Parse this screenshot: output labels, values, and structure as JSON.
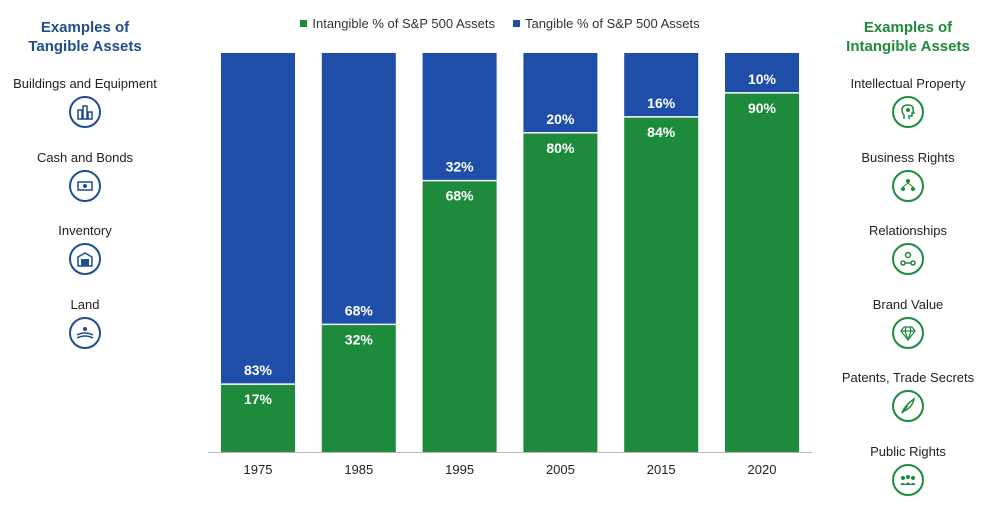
{
  "left_panel": {
    "title_line1": "Examples of",
    "title_line2": "Tangible Assets",
    "items": [
      {
        "label": "Buildings and Equipment",
        "icon": "building-icon"
      },
      {
        "label": "Cash and Bonds",
        "icon": "cash-icon"
      },
      {
        "label": "Inventory",
        "icon": "warehouse-icon"
      },
      {
        "label": "Land",
        "icon": "landscape-icon"
      }
    ]
  },
  "right_panel": {
    "title_line1": "Examples of",
    "title_line2": "Intangible Assets",
    "items": [
      {
        "label": "Intellectual Property",
        "icon": "head-idea-icon"
      },
      {
        "label": "Business Rights",
        "icon": "network-people-icon"
      },
      {
        "label": "Relationships",
        "icon": "relationships-icon"
      },
      {
        "label": "Brand Value",
        "icon": "diamond-icon"
      },
      {
        "label": "Patents, Trade Secrets",
        "icon": "quill-icon"
      },
      {
        "label": "Public Rights",
        "icon": "group-icon"
      }
    ]
  },
  "colors": {
    "intangible": "#1e8a3c",
    "tangible": "#1f4ea8",
    "left_accent": "#1f4e8c",
    "right_accent": "#1e8a3c"
  },
  "chart_data": {
    "type": "bar",
    "stacked": true,
    "categories": [
      "1975",
      "1985",
      "1995",
      "2005",
      "2015",
      "2020"
    ],
    "series": [
      {
        "name": "Intangible % of S&P 500 Assets",
        "values": [
          17,
          32,
          68,
          80,
          84,
          90
        ],
        "labels": [
          "17%",
          "32%",
          "68%",
          "80%",
          "84%",
          "90%"
        ]
      },
      {
        "name": "Tangible % of S&P 500 Assets",
        "values": [
          83,
          68,
          32,
          20,
          16,
          10
        ],
        "labels": [
          "83%",
          "68%",
          "32%",
          "20%",
          "16%",
          "10%"
        ]
      }
    ],
    "ylim": [
      0,
      100
    ],
    "grid": false,
    "legend": "top-center"
  }
}
